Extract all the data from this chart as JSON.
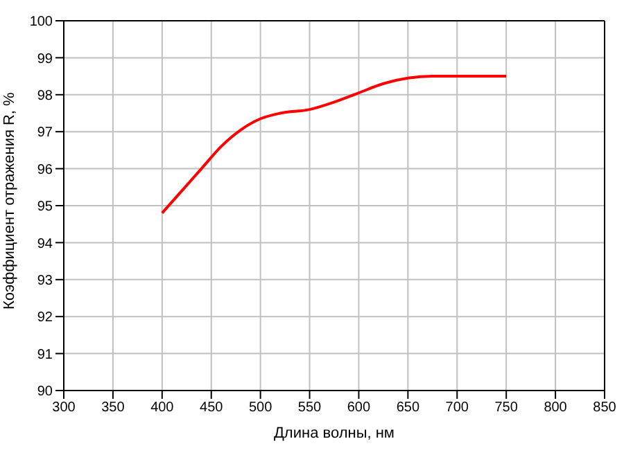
{
  "chart_data": {
    "type": "line",
    "xlabel": "Длина волны, нм",
    "ylabel": "Коэффициент отражения R, %",
    "x": [
      400,
      420,
      440,
      460,
      480,
      500,
      520,
      550,
      575,
      600,
      625,
      650,
      675,
      700,
      750
    ],
    "series": [
      {
        "color": "#ff0000",
        "values": [
          94.8,
          95.4,
          96.0,
          96.6,
          97.05,
          97.35,
          97.5,
          97.6,
          97.8,
          98.05,
          98.3,
          98.45,
          98.5,
          98.5,
          98.5
        ]
      }
    ],
    "xlim": [
      300,
      850
    ],
    "xticks": [
      300,
      350,
      400,
      450,
      500,
      550,
      600,
      650,
      700,
      750,
      800,
      850
    ],
    "ylim": [
      90,
      100
    ],
    "yticks": [
      90,
      91,
      92,
      93,
      94,
      95,
      96,
      97,
      98,
      99,
      100
    ],
    "grid": true,
    "legend": false,
    "marker": "none",
    "line_style": "solid"
  }
}
